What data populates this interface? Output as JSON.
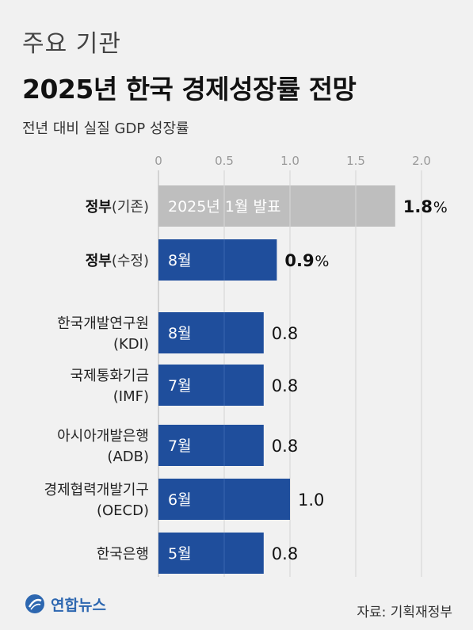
{
  "kicker": "주요 기관",
  "title": "2025년 한국 경제성장률 전망",
  "subtitle": "전년 대비 실질 GDP 성장률",
  "logo_text": "연합뉴스",
  "source": "자료: 기획재정부",
  "colors": {
    "gray_bar": "#bebebe",
    "blue_bar": "#1f4e9c",
    "grid": "#d3d3d3"
  },
  "chart_data": {
    "type": "bar",
    "orientation": "horizontal",
    "xlim": [
      0,
      2.0
    ],
    "xticks": [
      "0",
      "0.5",
      "1.0",
      "1.5",
      "2.0"
    ],
    "grid": true,
    "bars": [
      {
        "bold": "정부",
        "sub": "(기존)",
        "line2": "",
        "value": 1.8,
        "value_label": "1.8",
        "unit": "%",
        "bar_text": "2025년 1월 발표",
        "color": "gray",
        "emphasis": true
      },
      {
        "bold": "정부",
        "sub": "(수정)",
        "line2": "",
        "value": 0.9,
        "value_label": "0.9",
        "unit": "%",
        "bar_text": "8월",
        "color": "blue",
        "emphasis": true
      },
      {
        "bold": "",
        "sub": "한국개발연구원",
        "line2": "(KDI)",
        "value": 0.8,
        "value_label": "0.8",
        "unit": "",
        "bar_text": "8월",
        "color": "blue",
        "emphasis": false
      },
      {
        "bold": "",
        "sub": "국제통화기금",
        "line2": "(IMF)",
        "value": 0.8,
        "value_label": "0.8",
        "unit": "",
        "bar_text": "7월",
        "color": "blue",
        "emphasis": false
      },
      {
        "bold": "",
        "sub": "아시아개발은행",
        "line2": "(ADB)",
        "value": 0.8,
        "value_label": "0.8",
        "unit": "",
        "bar_text": "7월",
        "color": "blue",
        "emphasis": false
      },
      {
        "bold": "",
        "sub": "경제협력개발기구",
        "line2": "(OECD)",
        "value": 1.0,
        "value_label": "1.0",
        "unit": "",
        "bar_text": "6월",
        "color": "blue",
        "emphasis": false
      },
      {
        "bold": "",
        "sub": "한국은행",
        "line2": "",
        "value": 0.8,
        "value_label": "0.8",
        "unit": "",
        "bar_text": "5월",
        "color": "blue",
        "emphasis": false
      }
    ]
  }
}
